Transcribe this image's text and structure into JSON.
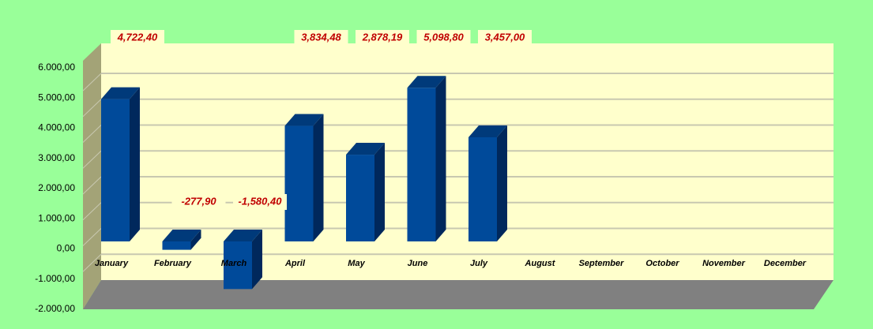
{
  "chart_data": {
    "type": "bar3d",
    "categories": [
      "January",
      "February",
      "March",
      "April",
      "May",
      "June",
      "July",
      "August",
      "September",
      "October",
      "November",
      "December"
    ],
    "values": [
      4722.4,
      -277.9,
      -1580.4,
      3834.48,
      2878.19,
      5098.8,
      3457.0,
      null,
      null,
      null,
      null,
      null
    ],
    "value_labels": [
      "4,722,40",
      "-277,90",
      "-1,580,40",
      "3,834,48",
      "2,878,19",
      "5,098,80",
      "3,457,00",
      null,
      null,
      null,
      null,
      null
    ],
    "color": "#004a9a",
    "ylim": [
      -2000,
      6000
    ],
    "yticks": [
      {
        "value": -2000,
        "label": "-2.000,00"
      },
      {
        "value": -1000,
        "label": "-1.000,00"
      },
      {
        "value": 0,
        "label": "0,00"
      },
      {
        "value": 1000,
        "label": "1.000,00"
      },
      {
        "value": 2000,
        "label": "2.000,00"
      },
      {
        "value": 3000,
        "label": "3.000,00"
      },
      {
        "value": 4000,
        "label": "4.000,00"
      },
      {
        "value": 5000,
        "label": "5.000,00"
      },
      {
        "value": 6000,
        "label": "6.000,00"
      }
    ],
    "grid": true
  }
}
